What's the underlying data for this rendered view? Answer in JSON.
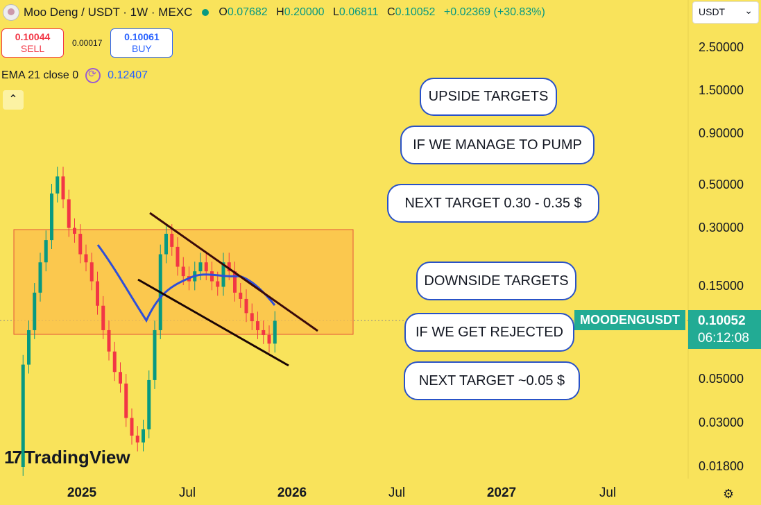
{
  "header": {
    "title": "Moo Deng / USDT · 1W · MEXC",
    "ohlc": [
      {
        "label": "O",
        "value": "0.07682"
      },
      {
        "label": "H",
        "value": "0.20000"
      },
      {
        "label": "L",
        "value": "0.06811"
      },
      {
        "label": "C",
        "value": "0.10052"
      }
    ],
    "change": "+0.02369 (+30.83%)"
  },
  "trade": {
    "sell_price": "0.10044",
    "sell_label": "SELL",
    "spread": "0.00017",
    "buy_price": "0.10061",
    "buy_label": "BUY"
  },
  "indicator": {
    "name": "EMA 21 close 0",
    "value": "0.12407"
  },
  "collapse_glyph": "⌃",
  "currency_select": {
    "value": "USDT",
    "chevron": "⌄"
  },
  "price_axis": {
    "labels": [
      "2.50000",
      "1.50000",
      "0.90000",
      "0.50000",
      "0.30000",
      "0.15000",
      "0.05000",
      "0.03000",
      "0.01800"
    ]
  },
  "time_axis": {
    "labels": [
      {
        "text": "2025",
        "bold": true
      },
      {
        "text": "Jul",
        "bold": false
      },
      {
        "text": "2026",
        "bold": true
      },
      {
        "text": "Jul",
        "bold": false
      },
      {
        "text": "2027",
        "bold": true
      },
      {
        "text": "Jul",
        "bold": false
      }
    ]
  },
  "last_price": {
    "symbol": "MOODENGUSDT",
    "price": "0.10052",
    "countdown": "06:12:08"
  },
  "annotations": [
    "UPSIDE TARGETS",
    "IF WE MANAGE TO PUMP",
    "NEXT TARGET 0.30 - 0.35 $",
    "DOWNSIDE TARGETS",
    "IF WE GET REJECTED",
    "NEXT TARGET ~0.05 $"
  ],
  "branding": {
    "name": "TradingView",
    "logo": "17"
  },
  "colors": {
    "background": "#f9e35b",
    "up": "#089981",
    "down": "#f23645",
    "ema": "#2f4fd8",
    "zone_fill": "#fbbf4a",
    "zone_border": "#e5533a",
    "channel": "#3a0a0a",
    "accent": "#22ab94"
  },
  "chart_data": {
    "type": "candlestick",
    "scale": "log",
    "symbol": "MOODENGUSDT",
    "interval": "1W",
    "ylim": [
      0.016,
      3.5
    ],
    "overlays": {
      "ema21": [
        {
          "t": "2024-11",
          "v": 0.23
        },
        {
          "t": "2024-12",
          "v": 0.17
        },
        {
          "t": "2025-01",
          "v": 0.11
        },
        {
          "t": "2025-02",
          "v": 0.075
        },
        {
          "t": "2025-03",
          "v": 0.13
        },
        {
          "t": "2025-04",
          "v": 0.15
        },
        {
          "t": "2025-05",
          "v": 0.16
        },
        {
          "t": "2025-06",
          "v": 0.145
        },
        {
          "t": "2025-07",
          "v": 0.14
        },
        {
          "t": "2025-08",
          "v": 0.15
        },
        {
          "t": "2025-09",
          "v": 0.14
        },
        {
          "t": "2025-10",
          "v": 0.14
        },
        {
          "t": "2025-11",
          "v": 0.124
        }
      ],
      "support_resistance_zone": {
        "low": 0.08,
        "high": 0.28
      }
    },
    "weekly_closes": [
      0.018,
      0.06,
      0.09,
      0.14,
      0.2,
      0.26,
      0.45,
      0.55,
      0.42,
      0.3,
      0.28,
      0.22,
      0.2,
      0.16,
      0.12,
      0.09,
      0.07,
      0.055,
      0.048,
      0.032,
      0.026,
      0.024,
      0.028,
      0.05,
      0.09,
      0.22,
      0.28,
      0.24,
      0.19,
      0.17,
      0.16,
      0.18,
      0.2,
      0.18,
      0.16,
      0.15,
      0.2,
      0.18,
      0.14,
      0.13,
      0.11,
      0.1,
      0.09,
      0.085,
      0.0768,
      0.10052
    ]
  }
}
